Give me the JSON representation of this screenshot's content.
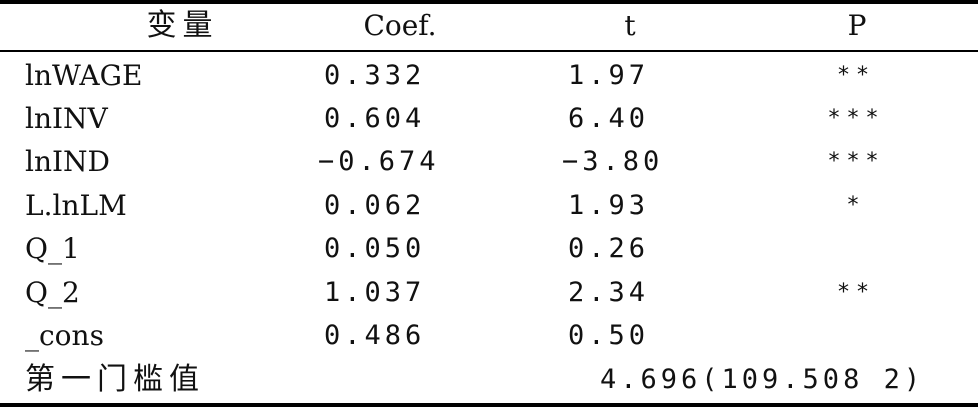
{
  "table": {
    "headers": {
      "variable": "变量",
      "coef": "Coef.",
      "t": "t",
      "p": "P"
    },
    "rows": [
      {
        "variable": "lnWAGE",
        "coef": "0.332",
        "t": "1.97",
        "p": "**"
      },
      {
        "variable": "lnINV",
        "coef": "0.604",
        "t": "6.40",
        "p": "***"
      },
      {
        "variable": "lnIND",
        "coef": "−0.674",
        "t": "−3.80",
        "p": "***"
      },
      {
        "variable": "L.lnLM",
        "coef": "0.062",
        "t": "1.93",
        "p": "*"
      },
      {
        "variable": "Q_1",
        "coef": "0.050",
        "t": "0.26",
        "p": ""
      },
      {
        "variable": "Q_2",
        "coef": "1.037",
        "t": "2.34",
        "p": "**"
      },
      {
        "variable": "_cons",
        "coef": "0.486",
        "t": "0.50",
        "p": ""
      }
    ],
    "threshold": {
      "label": "第一门槛值",
      "value": "4.696(109.508 2)"
    }
  }
}
